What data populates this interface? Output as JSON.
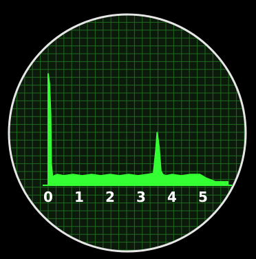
{
  "colors": {
    "background": "#000000",
    "screen": "#0b1a0b",
    "grid": "#1f6b1f",
    "bezel": "#e6e6e6",
    "signal": "#33ff33"
  },
  "chart_data": {
    "type": "area",
    "xlim": [
      0,
      5.8
    ],
    "ylim": [
      0,
      1
    ],
    "grid": true,
    "tick_labels": [
      "0",
      "1",
      "2",
      "3",
      "4",
      "5"
    ],
    "x": [
      0.0,
      0.04,
      0.08,
      0.1,
      0.14,
      0.2,
      0.3,
      0.5,
      0.8,
      1.1,
      1.4,
      1.7,
      2.0,
      2.3,
      2.6,
      2.9,
      3.2,
      3.4,
      3.48,
      3.52,
      3.58,
      3.64,
      3.7,
      3.8,
      4.0,
      4.3,
      4.6,
      4.9,
      5.1,
      5.4,
      5.8
    ],
    "values": [
      0.93,
      0.85,
      0.6,
      0.18,
      0.07,
      0.08,
      0.09,
      0.08,
      0.09,
      0.08,
      0.09,
      0.08,
      0.09,
      0.08,
      0.09,
      0.08,
      0.09,
      0.1,
      0.3,
      0.44,
      0.32,
      0.12,
      0.09,
      0.08,
      0.09,
      0.08,
      0.09,
      0.09,
      0.06,
      0.03,
      0.03
    ]
  }
}
